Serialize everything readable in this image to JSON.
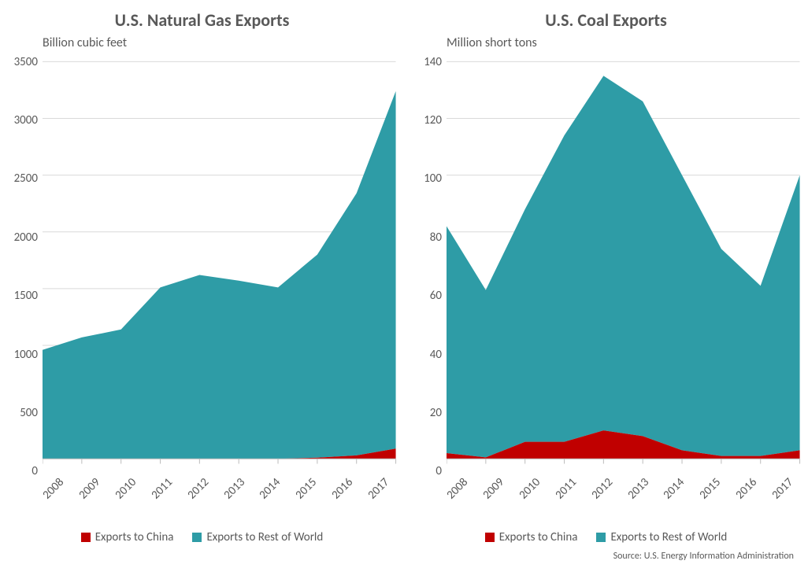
{
  "colors": {
    "china": "#c00000",
    "rest": "#2e9ca6",
    "grid": "#d9d9d9",
    "axis": "#bfbfbf",
    "text": "#595959",
    "bg": "#ffffff"
  },
  "source_label": "Source: U.S. Energy Information Administration",
  "legend": {
    "china": "Exports to China",
    "rest": "Exports to Rest of World"
  },
  "panels": {
    "gas": {
      "title": "U.S. Natural Gas Exports",
      "subtitle": "Billion cubic feet",
      "type": "area-stacked",
      "years": [
        "2008",
        "2009",
        "2010",
        "2011",
        "2012",
        "2013",
        "2014",
        "2015",
        "2016",
        "2017"
      ],
      "ylim": [
        0,
        3500
      ],
      "ytick_step": 500,
      "series": {
        "china": [
          0,
          0,
          0,
          0,
          0,
          0,
          0,
          10,
          30,
          90
        ],
        "rest": [
          960,
          1070,
          1140,
          1510,
          1620,
          1570,
          1510,
          1790,
          2310,
          3150
        ]
      },
      "legend_order": [
        "china",
        "rest"
      ],
      "title_fontsize": 22,
      "subtitle_fontsize": 16,
      "tick_fontsize": 15,
      "x_tick_rotation": -45,
      "area_opacity": 1.0
    },
    "coal": {
      "title": "U.S. Coal Exports",
      "subtitle": "Million short tons",
      "type": "area-stacked",
      "years": [
        "2008",
        "2009",
        "2010",
        "2011",
        "2012",
        "2013",
        "2014",
        "2015",
        "2016",
        "2017"
      ],
      "ylim": [
        0,
        140
      ],
      "ytick_step": 20,
      "series": {
        "china": [
          2,
          0.5,
          6,
          6,
          10,
          8,
          3,
          1,
          1,
          3
        ],
        "rest": [
          80,
          59,
          82,
          108,
          125,
          118,
          97,
          73,
          60,
          97
        ]
      },
      "legend_order": [
        "china",
        "rest"
      ],
      "title_fontsize": 22,
      "subtitle_fontsize": 16,
      "tick_fontsize": 15,
      "x_tick_rotation": -45,
      "area_opacity": 1.0
    }
  }
}
